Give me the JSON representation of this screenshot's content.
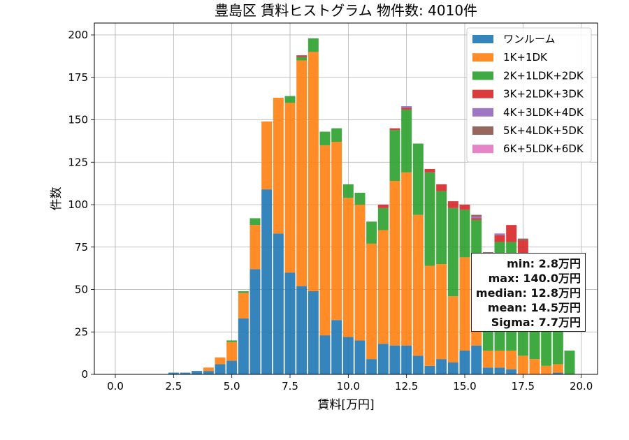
{
  "chart_data": {
    "type": "bar",
    "stacked": true,
    "title": "豊島区 賃料ヒストグラム 物件数: 4010件",
    "xlabel": "賃料[万円]",
    "ylabel": "件数",
    "xlim": [
      -0.9,
      20.7
    ],
    "ylim": [
      0,
      207
    ],
    "grid": true,
    "legend_position": "top-right",
    "bin_width": 0.5,
    "x_ticks": [
      "0.0",
      "2.5",
      "5.0",
      "7.5",
      "10.0",
      "12.5",
      "15.0",
      "17.5",
      "20.0"
    ],
    "y_ticks": [
      "0",
      "25",
      "50",
      "75",
      "100",
      "125",
      "150",
      "175",
      "200"
    ],
    "x": [
      2.5,
      3.0,
      3.5,
      4.0,
      4.5,
      5.0,
      5.5,
      6.0,
      6.5,
      7.0,
      7.5,
      8.0,
      8.5,
      9.0,
      9.5,
      10.0,
      10.5,
      11.0,
      11.5,
      12.0,
      12.5,
      13.0,
      13.5,
      14.0,
      14.5,
      15.0,
      15.5,
      16.0,
      16.5,
      17.0,
      17.5,
      18.0,
      18.5,
      19.0,
      19.5
    ],
    "series": [
      {
        "name": "ワンルーム",
        "color": "#1f77b4",
        "values": [
          1,
          1,
          2,
          2,
          6,
          8,
          33,
          62,
          109,
          83,
          60,
          52,
          49,
          23,
          32,
          22,
          20,
          9,
          18,
          17,
          17,
          11,
          5,
          9,
          7,
          14,
          17,
          4,
          4,
          3,
          0,
          0,
          0,
          1,
          0
        ]
      },
      {
        "name": "1K+1DK",
        "color": "#ff7f0e",
        "values": [
          0,
          0,
          0,
          2,
          4,
          11,
          15,
          26,
          40,
          80,
          100,
          133,
          141,
          112,
          105,
          82,
          80,
          68,
          67,
          97,
          102,
          83,
          59,
          56,
          39,
          55,
          30,
          10,
          10,
          11,
          11,
          9,
          5,
          5,
          0
        ]
      },
      {
        "name": "2K+1LDK+2DK",
        "color": "#2ca02c",
        "values": [
          0,
          0,
          0,
          0,
          0,
          1,
          1,
          4,
          0,
          0,
          4,
          2,
          8,
          8,
          8,
          8,
          7,
          13,
          13,
          30,
          37,
          42,
          55,
          43,
          52,
          28,
          44,
          53,
          64,
          64,
          54,
          52,
          45,
          25,
          14
        ]
      },
      {
        "name": "3K+2LDK+3DK",
        "color": "#d62728",
        "values": [
          0,
          0,
          0,
          0,
          0,
          0,
          0,
          0,
          0,
          0,
          0,
          1,
          0,
          0,
          0,
          0,
          0,
          0,
          2,
          1,
          1,
          0,
          2,
          4,
          4,
          3,
          1,
          2,
          4,
          10,
          14,
          0,
          0,
          0,
          0
        ]
      },
      {
        "name": "4K+3LDK+4DK",
        "color": "#9467bd",
        "values": [
          0,
          0,
          0,
          0,
          0,
          0,
          0,
          0,
          0,
          0,
          0,
          0,
          0,
          0,
          0,
          0,
          0,
          0,
          0,
          0,
          1,
          0,
          0,
          0,
          0,
          0,
          1,
          2,
          1,
          0,
          0,
          0,
          0,
          0,
          0
        ]
      },
      {
        "name": "5K+4LDK+5DK",
        "color": "#8c564b",
        "values": [
          0,
          0,
          0,
          0,
          0,
          0,
          0,
          0,
          0,
          0,
          0,
          0,
          0,
          0,
          0,
          0,
          0,
          0,
          0,
          0,
          0,
          0,
          0,
          0,
          0,
          0,
          1,
          1,
          0,
          0,
          1,
          0,
          0,
          0,
          0
        ]
      },
      {
        "name": "6K+5LDK+6DK",
        "color": "#e377c2",
        "values": [
          0,
          0,
          0,
          0,
          0,
          0,
          0,
          0,
          0,
          0,
          0,
          0,
          0,
          0,
          0,
          0,
          0,
          0,
          0,
          0,
          0,
          0,
          0,
          0,
          0,
          0,
          0,
          0,
          0,
          0,
          0,
          0,
          0,
          0,
          0
        ]
      }
    ],
    "annotation": {
      "min": "min: 2.8万円",
      "max": "max: 140.0万円",
      "median": "median: 12.8万円",
      "mean": "mean: 14.5万円",
      "sigma": "Sigma: 7.7万円"
    }
  }
}
